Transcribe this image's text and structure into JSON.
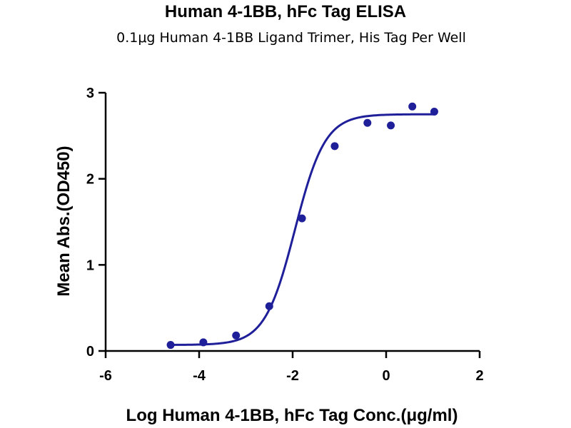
{
  "chart_data": {
    "type": "scatter",
    "title": "Human 4-1BB, hFc Tag ELISA",
    "subtitle": "0.1μg Human 4-1BB Ligand Trimer, His Tag Per Well",
    "xlabel": "Log Human 4-1BB, hFc Tag Conc.(μg/ml)",
    "ylabel": "Mean Abs.(OD450)",
    "xlim": [
      -6,
      2
    ],
    "ylim": [
      0,
      3
    ],
    "x_ticks": [
      "-6",
      "-4",
      "-2",
      "0",
      "2"
    ],
    "y_ticks": [
      "0",
      "1",
      "2",
      "3"
    ],
    "grid": false,
    "legend": "none",
    "series": [
      {
        "color": "#1f1f99",
        "points": [
          {
            "x": -4.61,
            "y": 0.07
          },
          {
            "x": -3.91,
            "y": 0.1
          },
          {
            "x": -3.21,
            "y": 0.18
          },
          {
            "x": -2.5,
            "y": 0.52
          },
          {
            "x": -1.8,
            "y": 1.54
          },
          {
            "x": -1.1,
            "y": 2.38
          },
          {
            "x": -0.4,
            "y": 2.65
          },
          {
            "x": 0.1,
            "y": 2.62
          },
          {
            "x": 0.56,
            "y": 2.84
          },
          {
            "x": 1.03,
            "y": 2.78
          }
        ],
        "fit": {
          "model": "4PL",
          "x_range": [
            -4.6,
            1.03
          ],
          "bottom": 0.07,
          "top": 2.75,
          "log_ec50": -1.95,
          "hill_slope": 1.35
        }
      }
    ]
  }
}
